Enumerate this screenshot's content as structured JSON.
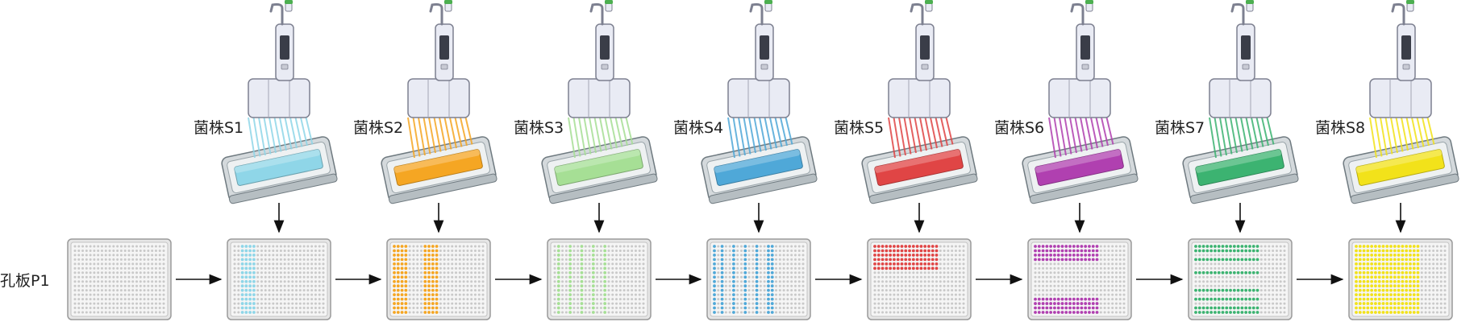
{
  "plate_label": "孔板P1",
  "plate_grid": {
    "rows": 16,
    "cols": 24
  },
  "empty_well_color": "#c9c9c9",
  "stages": [
    {
      "strain": "菌株S1",
      "color": "#8fd6e8",
      "fill": [
        {
          "rows": [
            0,
            15
          ],
          "cols": [
            2,
            5
          ]
        }
      ]
    },
    {
      "strain": "菌株S2",
      "color": "#f5a623",
      "fill": [
        {
          "rows": [
            0,
            15
          ],
          "cols": [
            0,
            3
          ]
        },
        {
          "rows": [
            0,
            15
          ],
          "cols": [
            8,
            11
          ]
        }
      ]
    },
    {
      "strain": "菌株S3",
      "color": "#a6df95",
      "fill": [
        {
          "rows": [
            0,
            15
          ],
          "cols": [
            1,
            1
          ]
        },
        {
          "rows": [
            0,
            15
          ],
          "cols": [
            4,
            4
          ]
        },
        {
          "rows": [
            0,
            15
          ],
          "cols": [
            7,
            7
          ]
        },
        {
          "rows": [
            0,
            15
          ],
          "cols": [
            10,
            10
          ]
        },
        {
          "rows": [
            0,
            15
          ],
          "cols": [
            13,
            13
          ]
        }
      ]
    },
    {
      "strain": "菌株S4",
      "color": "#4fa8d8",
      "fill": [
        {
          "rows": [
            0,
            15
          ],
          "cols": [
            0,
            0
          ]
        },
        {
          "rows": [
            0,
            15
          ],
          "cols": [
            2,
            2
          ]
        },
        {
          "rows": [
            0,
            15
          ],
          "cols": [
            5,
            5
          ]
        },
        {
          "rows": [
            0,
            15
          ],
          "cols": [
            8,
            8
          ]
        },
        {
          "rows": [
            0,
            15
          ],
          "cols": [
            11,
            11
          ]
        },
        {
          "rows": [
            0,
            15
          ],
          "cols": [
            14,
            14
          ]
        },
        {
          "rows": [
            0,
            15
          ],
          "cols": [
            15,
            15
          ]
        }
      ]
    },
    {
      "strain": "菌株S5",
      "color": "#e04545",
      "fill": [
        {
          "rows": [
            0,
            5
          ],
          "cols": [
            0,
            16
          ]
        }
      ]
    },
    {
      "strain": "菌株S6",
      "color": "#b040b0",
      "fill": [
        {
          "rows": [
            0,
            3
          ],
          "cols": [
            0,
            16
          ]
        },
        {
          "rows": [
            12,
            15
          ],
          "cols": [
            0,
            16
          ]
        }
      ]
    },
    {
      "strain": "菌株S7",
      "color": "#3cb371",
      "fill": [
        {
          "rows": [
            0,
            1
          ],
          "cols": [
            0,
            16
          ]
        },
        {
          "rows": [
            3,
            3
          ],
          "cols": [
            0,
            16
          ]
        },
        {
          "rows": [
            6,
            6
          ],
          "cols": [
            0,
            16
          ]
        },
        {
          "rows": [
            10,
            10
          ],
          "cols": [
            0,
            16
          ]
        },
        {
          "rows": [
            12,
            12
          ],
          "cols": [
            0,
            16
          ]
        },
        {
          "rows": [
            14,
            15
          ],
          "cols": [
            0,
            16
          ]
        }
      ]
    },
    {
      "strain": "菌株S8",
      "color": "#f2e21a",
      "fill": [
        {
          "rows": [
            0,
            15
          ],
          "cols": [
            0,
            16
          ]
        }
      ]
    }
  ]
}
